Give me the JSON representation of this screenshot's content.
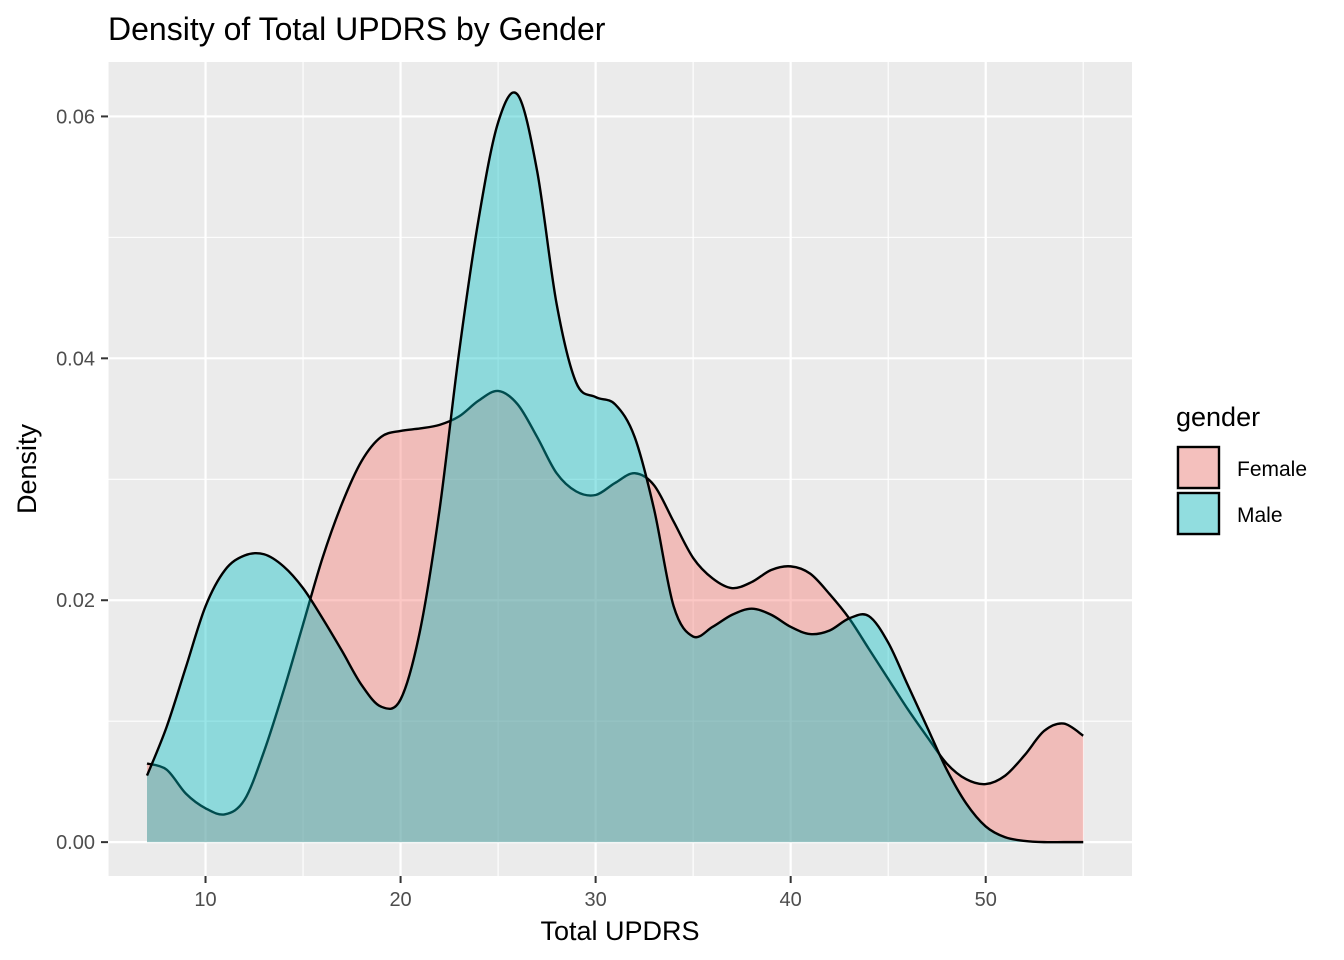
{
  "chart_data": {
    "type": "area",
    "title": "Density of Total UPDRS by Gender",
    "xlabel": "Total UPDRS",
    "ylabel": "Density",
    "xlim": [
      5,
      57.5
    ],
    "ylim": [
      -0.0028,
      0.0645
    ],
    "x_ticks": [
      10,
      20,
      30,
      40,
      50
    ],
    "x_tick_labels": [
      "10",
      "20",
      "30",
      "40",
      "50"
    ],
    "y_ticks": [
      0.0,
      0.02,
      0.04,
      0.06
    ],
    "y_tick_labels": [
      "0.00",
      "0.02",
      "0.04",
      "0.06"
    ],
    "grid": true,
    "legend": {
      "title": "gender",
      "position": "right"
    },
    "series": [
      {
        "name": "Female",
        "color": "#F8766D",
        "x": [
          7,
          8,
          9,
          10,
          11,
          12,
          13,
          14,
          15,
          16,
          17,
          18,
          19,
          20,
          21,
          22,
          23,
          24,
          25,
          26,
          27,
          28,
          29,
          30,
          31,
          32,
          33,
          34,
          35,
          36,
          37,
          38,
          39,
          40,
          41,
          42,
          43,
          44,
          45,
          46,
          47,
          48,
          49,
          50,
          51,
          52,
          53,
          54,
          55
        ],
        "y": [
          0.0065,
          0.006,
          0.004,
          0.0028,
          0.0023,
          0.0035,
          0.0075,
          0.0125,
          0.018,
          0.0235,
          0.028,
          0.0315,
          0.0335,
          0.034,
          0.0342,
          0.0345,
          0.0352,
          0.0365,
          0.0373,
          0.0362,
          0.0335,
          0.0305,
          0.029,
          0.0287,
          0.0297,
          0.0305,
          0.0295,
          0.0265,
          0.0235,
          0.0218,
          0.021,
          0.0215,
          0.0225,
          0.0228,
          0.0222,
          0.0205,
          0.0185,
          0.016,
          0.0135,
          0.011,
          0.0087,
          0.0065,
          0.0052,
          0.0048,
          0.0055,
          0.0072,
          0.0092,
          0.0098,
          0.0088
        ]
      },
      {
        "name": "Male",
        "color": "#00BFC4",
        "x": [
          7,
          8,
          9,
          10,
          11,
          12,
          13,
          14,
          15,
          16,
          17,
          18,
          19,
          20,
          21,
          22,
          23,
          24,
          25,
          26,
          27,
          28,
          29,
          30,
          31,
          32,
          33,
          34,
          35,
          36,
          37,
          38,
          39,
          40,
          41,
          42,
          43,
          44,
          45,
          46,
          47,
          48,
          49,
          50,
          51,
          52,
          53,
          54,
          55
        ],
        "y": [
          0.0055,
          0.0095,
          0.0145,
          0.0195,
          0.0225,
          0.0237,
          0.0238,
          0.0228,
          0.021,
          0.0185,
          0.0158,
          0.013,
          0.0112,
          0.0118,
          0.0175,
          0.0275,
          0.0405,
          0.0515,
          0.0595,
          0.0618,
          0.0555,
          0.0445,
          0.038,
          0.0368,
          0.0362,
          0.0335,
          0.0275,
          0.0195,
          0.017,
          0.0178,
          0.0188,
          0.0193,
          0.0188,
          0.0178,
          0.0172,
          0.0175,
          0.0185,
          0.0187,
          0.0165,
          0.013,
          0.0095,
          0.006,
          0.0032,
          0.0013,
          0.0004,
          0.0001,
          0.0,
          0.0,
          0.0
        ]
      }
    ]
  }
}
